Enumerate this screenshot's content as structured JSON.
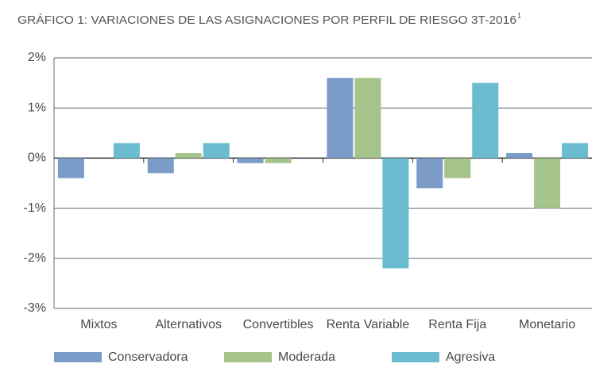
{
  "chart_data": {
    "type": "bar",
    "title": "GRÁFICO 1: VARIACIONES DE LAS ASIGNACIONES POR PERFIL DE RIESGO 3T-2016",
    "title_note": "1",
    "categories": [
      "Mixtos",
      "Alternativos",
      "Convertibles",
      "Renta Variable",
      "Renta Fija",
      "Monetario"
    ],
    "series": [
      {
        "name": "Conservadora",
        "color": "#7b9bc8",
        "values": [
          -0.4,
          -0.3,
          -0.1,
          1.6,
          -0.6,
          0.1
        ]
      },
      {
        "name": "Moderada",
        "color": "#a5c48c",
        "values": [
          0,
          0.1,
          -0.1,
          1.6,
          -0.4,
          -1.0
        ]
      },
      {
        "name": "Agresiva",
        "color": "#6bbccf",
        "values": [
          0.3,
          0.3,
          0,
          -2.2,
          1.5,
          0.3
        ]
      }
    ],
    "ylim": [
      -3,
      2
    ],
    "yticks": [
      {
        "value": 2,
        "label": "2%"
      },
      {
        "value": 1,
        "label": "1%"
      },
      {
        "value": 0,
        "label": "0%"
      },
      {
        "value": -1,
        "label": "-1%"
      },
      {
        "value": -2,
        "label": "-2%"
      },
      {
        "value": -3,
        "label": "-3%"
      }
    ],
    "grid": true
  }
}
